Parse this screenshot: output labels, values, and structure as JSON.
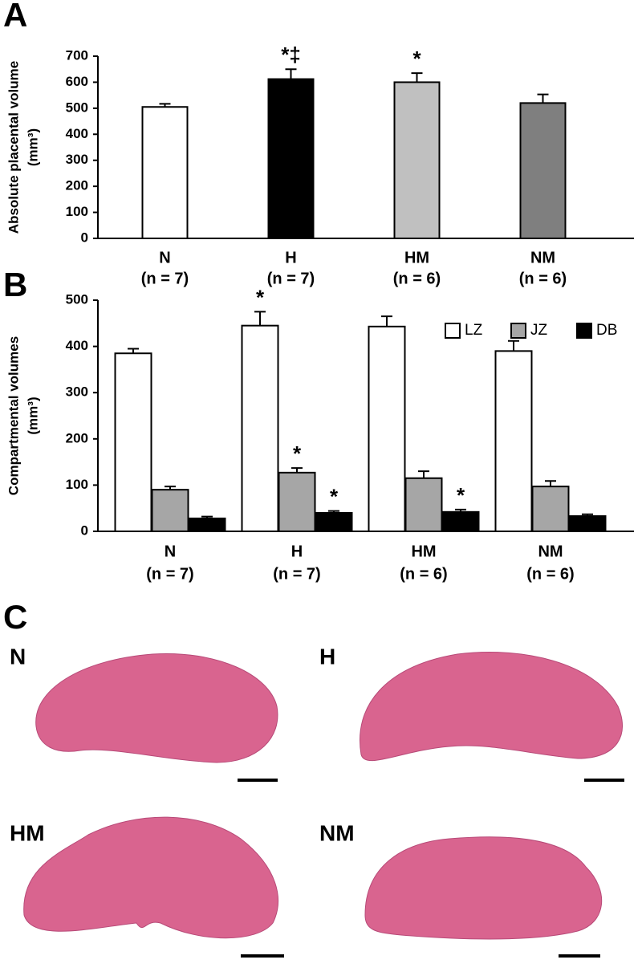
{
  "chart_data": [
    {
      "type": "bar",
      "panel_label": "A",
      "ylabel": "Absolute placental volume",
      "ylabel_unit": "(mm³)",
      "categories": [
        "N",
        "H",
        "HM",
        "NM"
      ],
      "sample_sizes": [
        "(n = 7)",
        "(n = 7)",
        "(n = 6)",
        "(n = 6)"
      ],
      "values": [
        505,
        612,
        600,
        520
      ],
      "errors": [
        12,
        38,
        35,
        33
      ],
      "colors": [
        "#ffffff",
        "#000000",
        "#c0c0c0",
        "#7f7f7f"
      ],
      "annotations": [
        null,
        "*‡",
        "*",
        null
      ],
      "ylim": [
        0,
        700
      ],
      "yticks": [
        0,
        100,
        200,
        300,
        400,
        500,
        600,
        700
      ],
      "grid": false
    },
    {
      "type": "bar",
      "panel_label": "B",
      "ylabel": "Compartmental volumes",
      "ylabel_unit": "(mm³)",
      "categories": [
        "N",
        "H",
        "HM",
        "NM"
      ],
      "sample_sizes": [
        "(n = 7)",
        "(n = 7)",
        "(n = 6)",
        "(n = 6)"
      ],
      "series": [
        {
          "name": "LZ",
          "color": "#ffffff",
          "values": [
            385,
            445,
            443,
            390
          ],
          "errors": [
            10,
            30,
            22,
            22
          ],
          "annotations": [
            null,
            "*",
            null,
            null
          ]
        },
        {
          "name": "JZ",
          "color": "#a6a6a6",
          "values": [
            90,
            127,
            115,
            97
          ],
          "errors": [
            7,
            10,
            15,
            12
          ],
          "annotations": [
            null,
            "*",
            null,
            null
          ]
        },
        {
          "name": "DB",
          "color": "#000000",
          "values": [
            28,
            40,
            42,
            33
          ],
          "errors": [
            4,
            4,
            5,
            4
          ],
          "annotations": [
            null,
            "*",
            "*",
            null
          ]
        }
      ],
      "legend": "upper right",
      "ylim": [
        0,
        500
      ],
      "yticks": [
        0,
        100,
        200,
        300,
        400,
        500
      ],
      "grid": false
    }
  ],
  "micrographs": {
    "panel_label": "C",
    "labels": [
      "N",
      "H",
      "HM",
      "NM"
    ]
  }
}
